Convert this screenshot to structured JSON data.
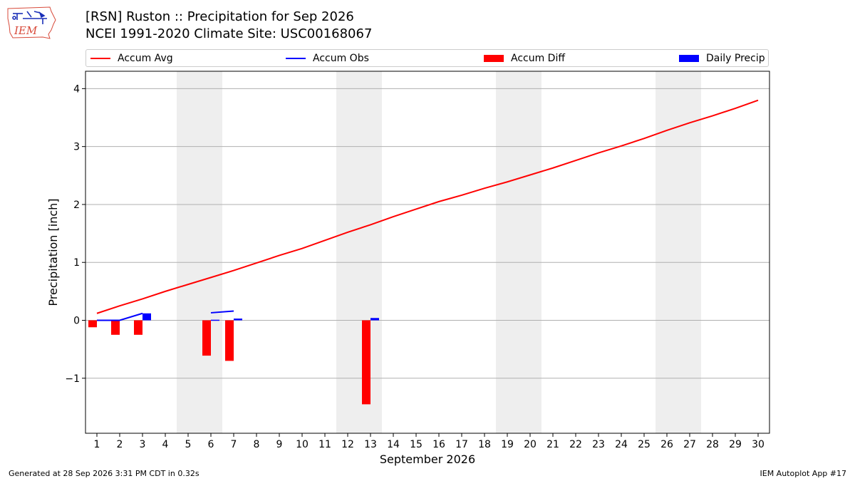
{
  "header": {
    "title_line1": "[RSN] Ruston :: Precipitation for Sep 2026",
    "title_line2": "NCEI 1991-2020 Climate Site: USC00168067"
  },
  "logo": {
    "text": "IEM",
    "icon": "iem-iowa-logo-icon"
  },
  "footer": {
    "generated": "Generated at 28 Sep 2026 3:31 PM CDT in 0.32s",
    "app": "IEM Autoplot App #17"
  },
  "colors": {
    "avg": "#ff0000",
    "obs": "#0000ff",
    "diff": "#ff0000",
    "daily": "#0000ff",
    "weekend": "#eeeeee",
    "grid": "#b0b0b0"
  },
  "legend": {
    "accum_avg": "Accum Avg",
    "accum_obs": "Accum Obs",
    "accum_diff": "Accum Diff",
    "daily_precip": "Daily Precip"
  },
  "chart_data": {
    "type": "bar",
    "xlabel": "September 2026",
    "ylabel": "Precipitation [inch]",
    "xlim": [
      0.5,
      30.5
    ],
    "ylim": [
      -1.95,
      4.3
    ],
    "yticks": [
      4,
      3,
      2,
      1,
      0,
      -1
    ],
    "ytick_labels": [
      "4",
      "3",
      "2",
      "1",
      "0",
      "−1"
    ],
    "x_days": [
      1,
      2,
      3,
      4,
      5,
      6,
      7,
      8,
      9,
      10,
      11,
      12,
      13,
      14,
      15,
      16,
      17,
      18,
      19,
      20,
      21,
      22,
      23,
      24,
      25,
      26,
      27,
      28,
      29,
      30
    ],
    "weekend_spans": [
      [
        4.5,
        6.5
      ],
      [
        11.5,
        13.5
      ],
      [
        18.5,
        20.5
      ],
      [
        25.5,
        27.5
      ]
    ],
    "grid": true,
    "legend_position": "top",
    "series": [
      {
        "name": "Accum Avg",
        "kind": "line",
        "x": [
          1,
          2,
          3,
          4,
          5,
          6,
          7,
          8,
          9,
          10,
          11,
          12,
          13,
          14,
          15,
          16,
          17,
          18,
          19,
          20,
          21,
          22,
          23,
          24,
          25,
          26,
          27,
          28,
          29,
          30
        ],
        "values": [
          0.12,
          0.25,
          0.37,
          0.5,
          0.62,
          0.74,
          0.86,
          0.99,
          1.12,
          1.24,
          1.38,
          1.52,
          1.65,
          1.79,
          1.92,
          2.05,
          2.16,
          2.28,
          2.39,
          2.51,
          2.63,
          2.76,
          2.89,
          3.01,
          3.14,
          3.28,
          3.41,
          3.53,
          3.66,
          3.8
        ]
      },
      {
        "name": "Accum Obs",
        "kind": "line",
        "segments": [
          {
            "x": [
              1,
              2,
              3
            ],
            "values": [
              0.0,
              0.0,
              0.12
            ]
          },
          {
            "x": [
              6,
              7
            ],
            "values": [
              0.13,
              0.16
            ]
          }
        ]
      },
      {
        "name": "Accum Diff",
        "kind": "bar",
        "x": [
          1,
          2,
          3,
          6,
          7,
          13
        ],
        "values": [
          -0.12,
          -0.25,
          -0.25,
          -0.61,
          -0.7,
          -1.45
        ]
      },
      {
        "name": "Daily Precip",
        "kind": "bar",
        "x": [
          3,
          6,
          7,
          13
        ],
        "values": [
          0.12,
          0.01,
          0.03,
          0.04
        ]
      }
    ]
  }
}
